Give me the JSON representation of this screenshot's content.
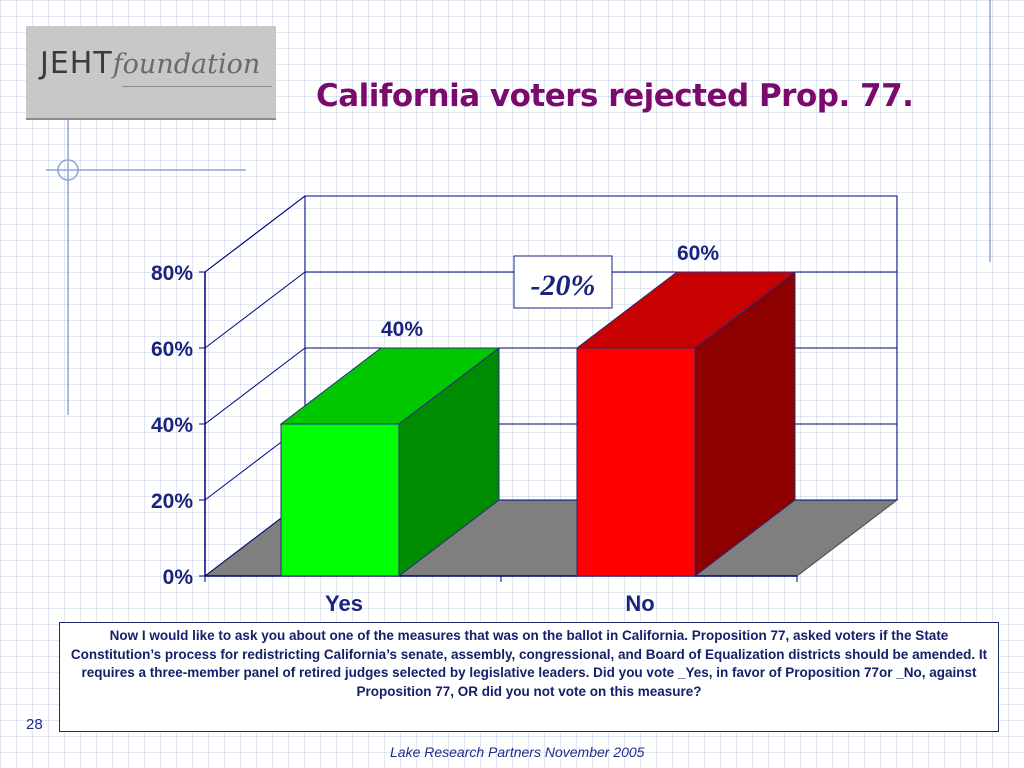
{
  "logo": {
    "main": "JEHT",
    "sub": "foundation"
  },
  "title": "California voters rejected Prop. 77.",
  "chart_data": {
    "type": "bar",
    "categories": [
      "Yes",
      "No"
    ],
    "values": [
      40,
      60
    ],
    "data_labels": [
      "40%",
      "60%"
    ],
    "colors": [
      "#00ff00",
      "#ff0000"
    ],
    "ylim": [
      0,
      80
    ],
    "yticks": [
      0,
      20,
      40,
      60,
      80
    ],
    "ytick_labels": [
      "0%",
      "20%",
      "40%",
      "60%",
      "80%"
    ],
    "gridlines": true,
    "annotation": "-20%"
  },
  "question_text": "Now I would like to ask you about one of the measures that was on the ballot in California. Proposition 77, asked voters if the State Constitution’s process for redistricting California’s senate, assembly, congressional, and Board of Equalization districts should be amended. It requires a three-member panel of retired judges selected by legislative leaders.  Did you vote _Yes, in favor of Proposition 77or _No, against Proposition 77, OR did you not vote on this measure?",
  "page_number": "28",
  "source": "Lake Research Partners November 2005"
}
